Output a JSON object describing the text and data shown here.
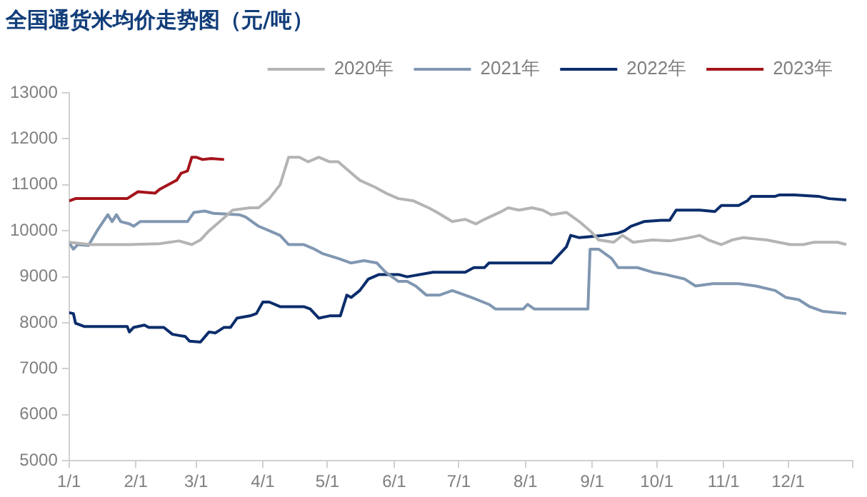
{
  "chart_data": {
    "type": "line",
    "title": "全国通货米均价走势图（元/吨）",
    "xlim": [
      "--01-01",
      "--12-31"
    ],
    "xticks": [
      {
        "value": "--01-01",
        "label": "1/1"
      },
      {
        "value": "--02-01",
        "label": "2/1"
      },
      {
        "value": "--03-01",
        "label": "3/1"
      },
      {
        "value": "--04-01",
        "label": "4/1"
      },
      {
        "value": "--05-01",
        "label": "5/1"
      },
      {
        "value": "--06-01",
        "label": "6/1"
      },
      {
        "value": "--07-01",
        "label": "7/1"
      },
      {
        "value": "--08-01",
        "label": "8/1"
      },
      {
        "value": "--09-01",
        "label": "9/1"
      },
      {
        "value": "--10-01",
        "label": "10/1"
      },
      {
        "value": "--11-01",
        "label": "11/1"
      },
      {
        "value": "--12-01",
        "label": "12/1"
      },
      {
        "value": "--12-31",
        "label": null
      }
    ],
    "ylim": [
      5000,
      13000
    ],
    "yticks": [
      5000,
      6000,
      7000,
      8000,
      9000,
      10000,
      11000,
      12000,
      13000
    ],
    "legend": "top",
    "grid": false,
    "marker": "none",
    "line_style": "solid",
    "series": [
      {
        "name": "2020年",
        "color": "#b4b4b4",
        "x": [
          "--01-01",
          "--01-11",
          "--01-29",
          "--02-12",
          "--02-21",
          "--02-27",
          "--03-03",
          "--03-07",
          "--03-12",
          "--03-18",
          "--03-26",
          "--03-30",
          "--04-04",
          "--04-09",
          "--04-13",
          "--04-18",
          "--04-22",
          "--04-27",
          "--05-02",
          "--05-06",
          "--05-11",
          "--05-16",
          "--05-23",
          "--05-29",
          "--06-03",
          "--06-10",
          "--06-17",
          "--06-21",
          "--06-28",
          "--07-04",
          "--07-09",
          "--07-13",
          "--07-20",
          "--07-24",
          "--07-29",
          "--08-04",
          "--08-09",
          "--08-13",
          "--08-20",
          "--08-26",
          "--08-31",
          "--09-04",
          "--09-11",
          "--09-15",
          "--09-20",
          "--09-29",
          "--10-07",
          "--10-16",
          "--10-21",
          "--10-25",
          "--10-31",
          "--11-05",
          "--11-10",
          "--11-21",
          "--12-02",
          "--12-08",
          "--12-13",
          "--12-24",
          "--12-28"
        ],
        "values": [
          9750,
          9700,
          9700,
          9720,
          9780,
          9700,
          9800,
          10000,
          10200,
          10450,
          10500,
          10500,
          10700,
          11000,
          11600,
          11600,
          11500,
          11600,
          11500,
          11500,
          11300,
          11100,
          10950,
          10800,
          10700,
          10650,
          10500,
          10400,
          10200,
          10250,
          10150,
          10250,
          10400,
          10500,
          10450,
          10500,
          10450,
          10350,
          10400,
          10200,
          10000,
          9800,
          9750,
          9900,
          9750,
          9800,
          9780,
          9850,
          9900,
          9800,
          9700,
          9800,
          9850,
          9800,
          9700,
          9700,
          9750,
          9750,
          9700
        ]
      },
      {
        "name": "2021年",
        "color": "#8097b1",
        "x": [
          "--01-01",
          "--01-03",
          "--01-05",
          "--01-10",
          "--01-14",
          "--01-19",
          "--01-21",
          "--01-23",
          "--01-25",
          "--01-29",
          "--01-31",
          "--02-03",
          "--02-25",
          "--02-28",
          "--03-05",
          "--03-09",
          "--03-21",
          "--03-24",
          "--03-30",
          "--04-04",
          "--04-09",
          "--04-13",
          "--04-20",
          "--04-25",
          "--04-29",
          "--05-06",
          "--05-12",
          "--05-18",
          "--05-24",
          "--05-28",
          "--06-03",
          "--06-07",
          "--06-11",
          "--06-16",
          "--06-22",
          "--06-28",
          "--07-07",
          "--07-15",
          "--07-18",
          "--07-31",
          "--08-02",
          "--08-05",
          "--08-30",
          "--08-31",
          "--09-04",
          "--09-10",
          "--09-13",
          "--09-22",
          "--09-29",
          "--10-05",
          "--10-14",
          "--10-19",
          "--10-27",
          "--11-08",
          "--11-16",
          "--11-25",
          "--11-30",
          "--12-06",
          "--12-11",
          "--12-17",
          "--12-28"
        ],
        "values": [
          9750,
          9600,
          9700,
          9680,
          10000,
          10350,
          10200,
          10350,
          10200,
          10150,
          10100,
          10200,
          10200,
          10400,
          10430,
          10380,
          10350,
          10300,
          10100,
          10000,
          9900,
          9700,
          9700,
          9600,
          9500,
          9400,
          9300,
          9350,
          9300,
          9100,
          8900,
          8900,
          8800,
          8600,
          8600,
          8700,
          8550,
          8400,
          8300,
          8300,
          8400,
          8300,
          8300,
          9600,
          9600,
          9400,
          9200,
          9200,
          9100,
          9050,
          8950,
          8800,
          8850,
          8850,
          8800,
          8700,
          8550,
          8500,
          8350,
          8250,
          8200
        ]
      },
      {
        "name": "2022年",
        "color": "#0b2d6b",
        "x": [
          "--01-01",
          "--01-03",
          "--01-04",
          "--01-08",
          "--01-28",
          "--01-29",
          "--01-31",
          "--02-05",
          "--02-07",
          "--02-14",
          "--02-18",
          "--02-24",
          "--02-26",
          "--03-03",
          "--03-07",
          "--03-10",
          "--03-14",
          "--03-17",
          "--03-20",
          "--03-26",
          "--03-29",
          "--04-01",
          "--04-04",
          "--04-09",
          "--04-20",
          "--04-23",
          "--04-27",
          "--05-02",
          "--05-07",
          "--05-10",
          "--05-12",
          "--05-16",
          "--05-20",
          "--05-25",
          "--06-03",
          "--06-07",
          "--06-19",
          "--07-04",
          "--07-08",
          "--07-13",
          "--07-15",
          "--08-13",
          "--08-16",
          "--08-20",
          "--08-22",
          "--08-26",
          "--09-06",
          "--09-13",
          "--09-16",
          "--09-19",
          "--09-25",
          "--10-03",
          "--10-07",
          "--10-10",
          "--10-21",
          "--10-28",
          "--10-31",
          "--11-08",
          "--11-12",
          "--11-14",
          "--11-25",
          "--11-27",
          "--12-04",
          "--12-15",
          "--12-20",
          "--12-28"
        ],
        "values": [
          8220,
          8200,
          7990,
          7920,
          7920,
          7800,
          7900,
          7950,
          7900,
          7900,
          7750,
          7700,
          7600,
          7580,
          7800,
          7780,
          7900,
          7900,
          8100,
          8150,
          8200,
          8450,
          8450,
          8350,
          8350,
          8300,
          8100,
          8150,
          8150,
          8600,
          8550,
          8700,
          8950,
          9050,
          9050,
          9000,
          9100,
          9100,
          9200,
          9200,
          9300,
          9300,
          9450,
          9650,
          9900,
          9850,
          9900,
          9950,
          10000,
          10100,
          10200,
          10230,
          10230,
          10450,
          10450,
          10420,
          10550,
          10550,
          10650,
          10750,
          10750,
          10780,
          10780,
          10750,
          10700,
          10670
        ]
      },
      {
        "name": "2023年",
        "color": "#a5141c",
        "x": [
          "--01-01",
          "--01-04",
          "--01-28",
          "--02-02",
          "--02-10",
          "--02-12",
          "--02-16",
          "--02-20",
          "--02-22",
          "--02-25",
          "--02-27",
          "--03-01",
          "--03-04",
          "--03-08",
          "--03-14"
        ],
        "values": [
          10650,
          10700,
          10700,
          10850,
          10820,
          10900,
          11000,
          11100,
          11250,
          11300,
          11600,
          11600,
          11550,
          11570,
          11550
        ]
      }
    ]
  }
}
